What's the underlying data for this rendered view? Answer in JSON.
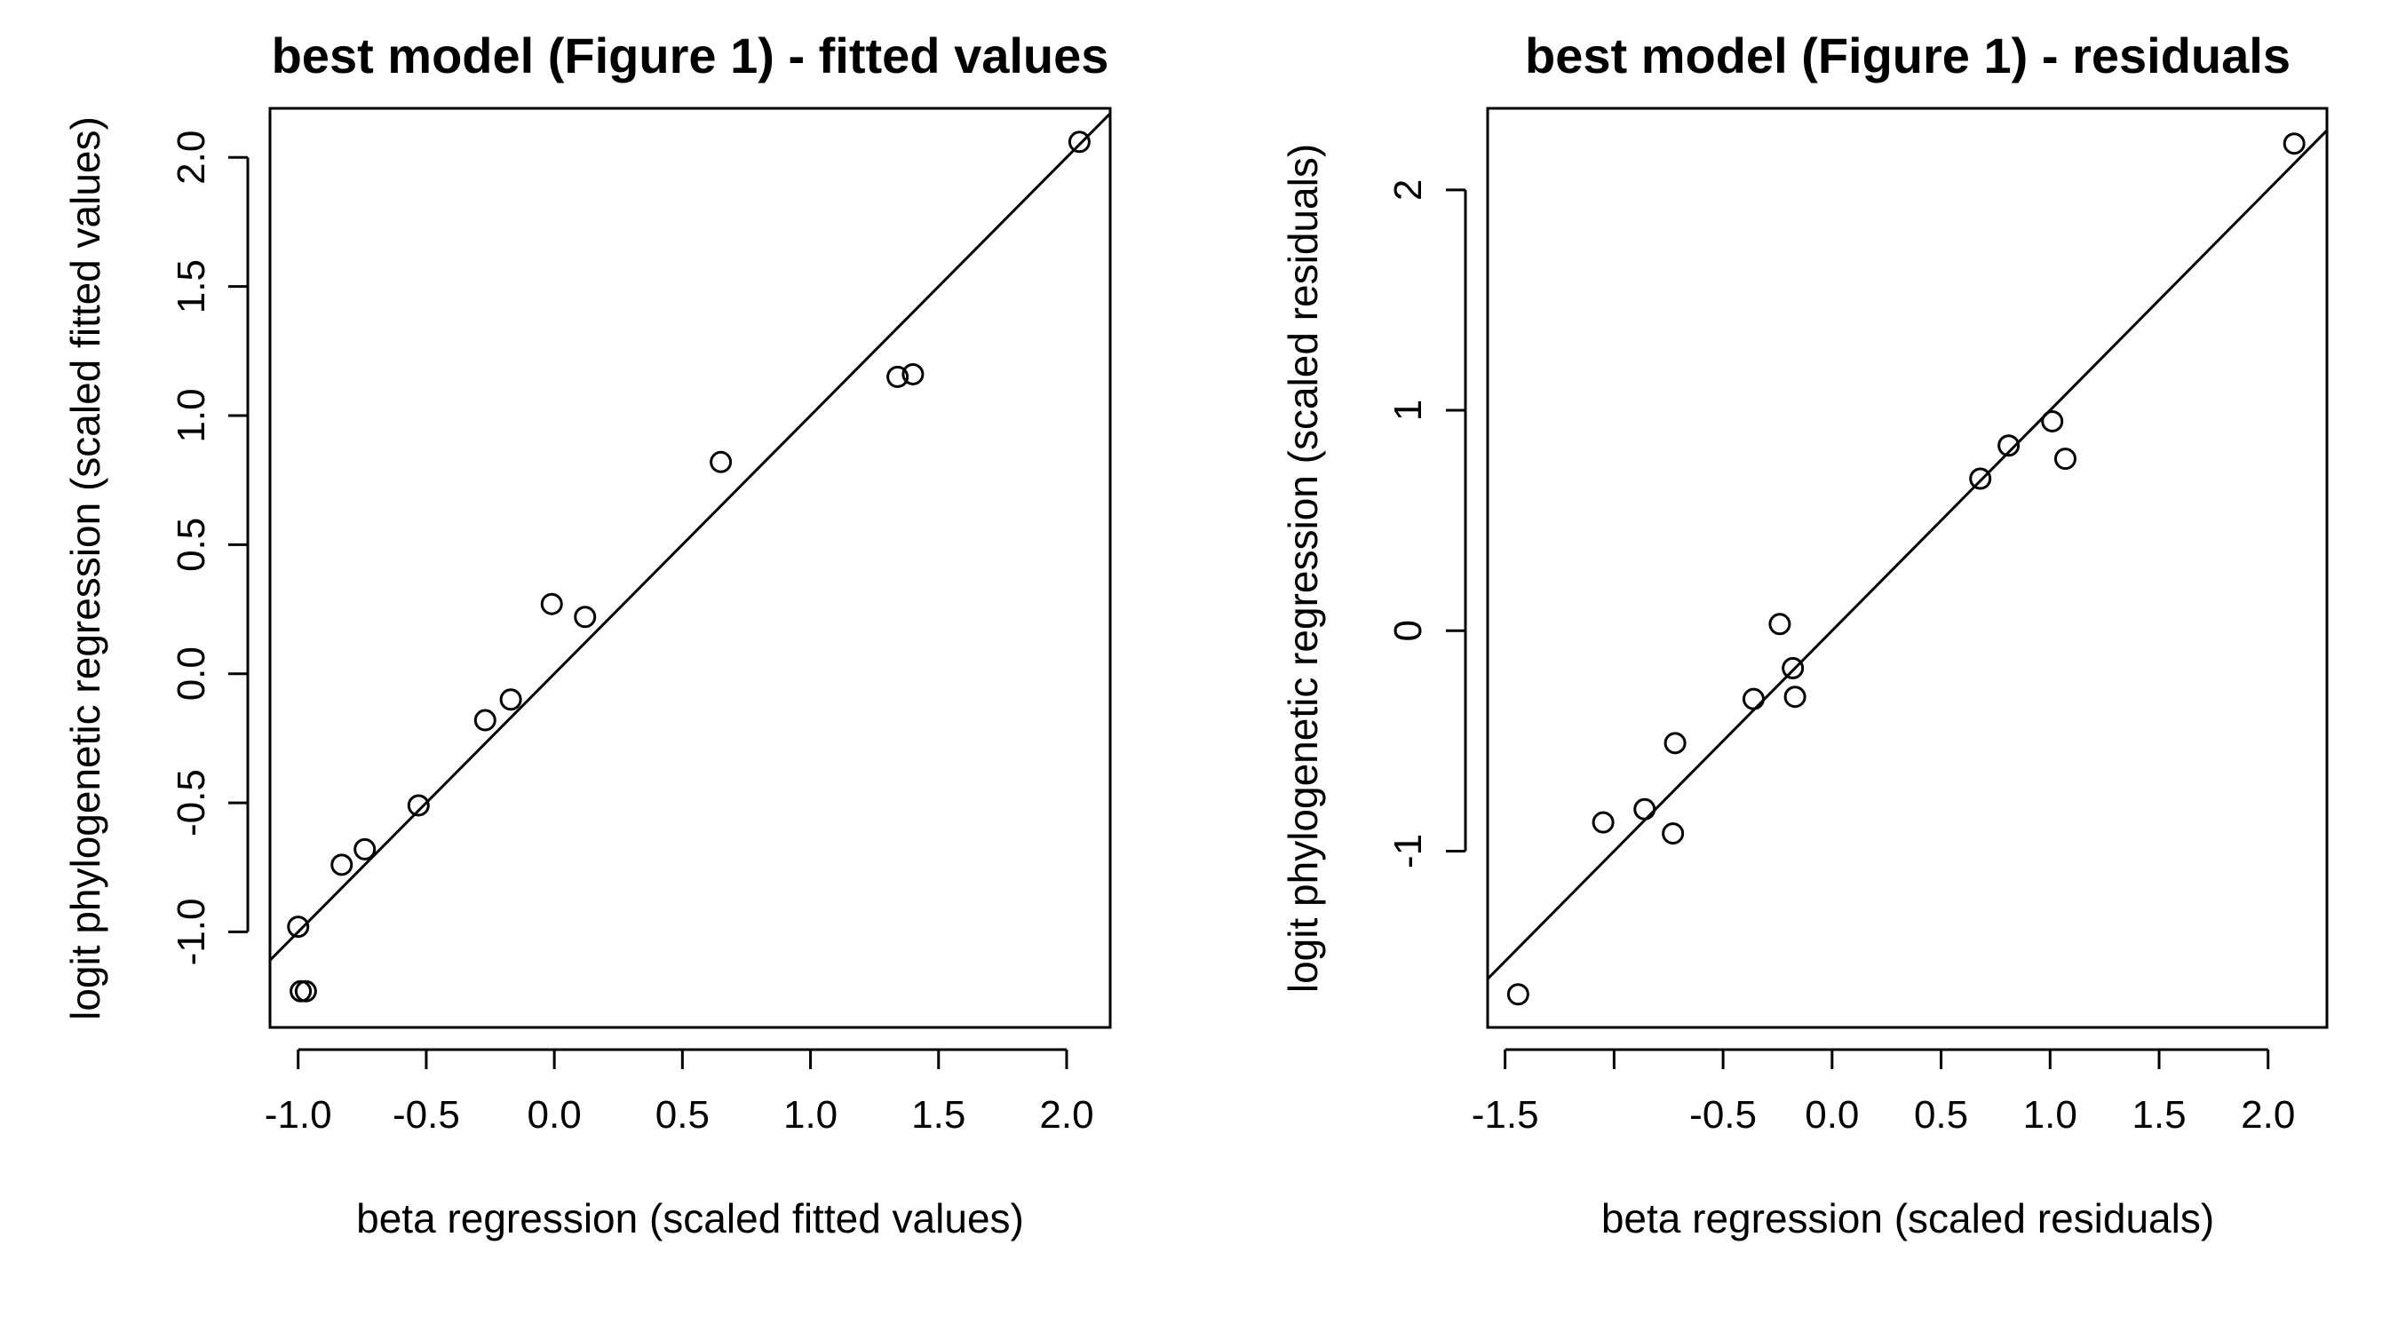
{
  "chart_data": [
    {
      "type": "scatter",
      "title": "best model (Figure 1) - fitted values",
      "xlabel": "beta regression (scaled fitted values)",
      "ylabel": "logit phylogenetic regression (scaled fitted values)",
      "xlim": [
        -1.11,
        2.17
      ],
      "ylim": [
        -1.37,
        2.19
      ],
      "xticks": [
        -1.0,
        -0.5,
        0.0,
        0.5,
        1.0,
        1.5,
        2.0
      ],
      "xtick_labels": [
        "-1.0",
        "-0.5",
        "0.0",
        "0.5",
        "1.0",
        "1.5",
        "2.0"
      ],
      "yticks": [
        -1.0,
        -0.5,
        0.0,
        0.5,
        1.0,
        1.5,
        2.0
      ],
      "ytick_labels": [
        "-1.0",
        "-0.5",
        "0.0",
        "0.5",
        "1.0",
        "1.5",
        "2.0"
      ],
      "grid": false,
      "reference_line": {
        "slope": 1,
        "intercept": 0
      },
      "points": [
        {
          "x": -1.0,
          "y": -0.98
        },
        {
          "x": -0.99,
          "y": -1.23
        },
        {
          "x": -0.97,
          "y": -1.23
        },
        {
          "x": -0.83,
          "y": -0.74
        },
        {
          "x": -0.74,
          "y": -0.68
        },
        {
          "x": -0.53,
          "y": -0.51
        },
        {
          "x": -0.27,
          "y": -0.18
        },
        {
          "x": -0.17,
          "y": -0.1
        },
        {
          "x": -0.01,
          "y": 0.27
        },
        {
          "x": 0.12,
          "y": 0.22
        },
        {
          "x": 0.65,
          "y": 0.82
        },
        {
          "x": 1.34,
          "y": 1.15
        },
        {
          "x": 1.4,
          "y": 1.16
        },
        {
          "x": 2.05,
          "y": 2.06
        }
      ]
    },
    {
      "type": "scatter",
      "title": "best model (Figure 1) - residuals",
      "xlabel": "beta regression (scaled residuals)",
      "ylabel": "logit phylogenetic regression (scaled residuals)",
      "xlim": [
        -1.58,
        2.27
      ],
      "ylim": [
        -1.8,
        2.37
      ],
      "xticks": [
        -1.5,
        -1.0,
        -0.5,
        0.0,
        0.5,
        1.0,
        1.5,
        2.0
      ],
      "xtick_labels": [
        "-1.5",
        "",
        "-0.5",
        "0.0",
        "0.5",
        "1.0",
        "1.5",
        "2.0"
      ],
      "yticks": [
        -1,
        0,
        1,
        2
      ],
      "ytick_labels": [
        "-1",
        "0",
        "1",
        "2"
      ],
      "grid": false,
      "reference_line": {
        "slope": 1,
        "intercept": 0
      },
      "points": [
        {
          "x": -1.44,
          "y": -1.65
        },
        {
          "x": -1.05,
          "y": -0.87
        },
        {
          "x": -0.86,
          "y": -0.81
        },
        {
          "x": -0.73,
          "y": -0.92
        },
        {
          "x": -0.72,
          "y": -0.51
        },
        {
          "x": -0.36,
          "y": -0.31
        },
        {
          "x": -0.24,
          "y": 0.03
        },
        {
          "x": -0.18,
          "y": -0.17
        },
        {
          "x": -0.17,
          "y": -0.3
        },
        {
          "x": 0.68,
          "y": 0.69
        },
        {
          "x": 0.81,
          "y": 0.84
        },
        {
          "x": 1.01,
          "y": 0.95
        },
        {
          "x": 1.07,
          "y": 0.78
        },
        {
          "x": 2.12,
          "y": 2.21
        }
      ]
    }
  ]
}
